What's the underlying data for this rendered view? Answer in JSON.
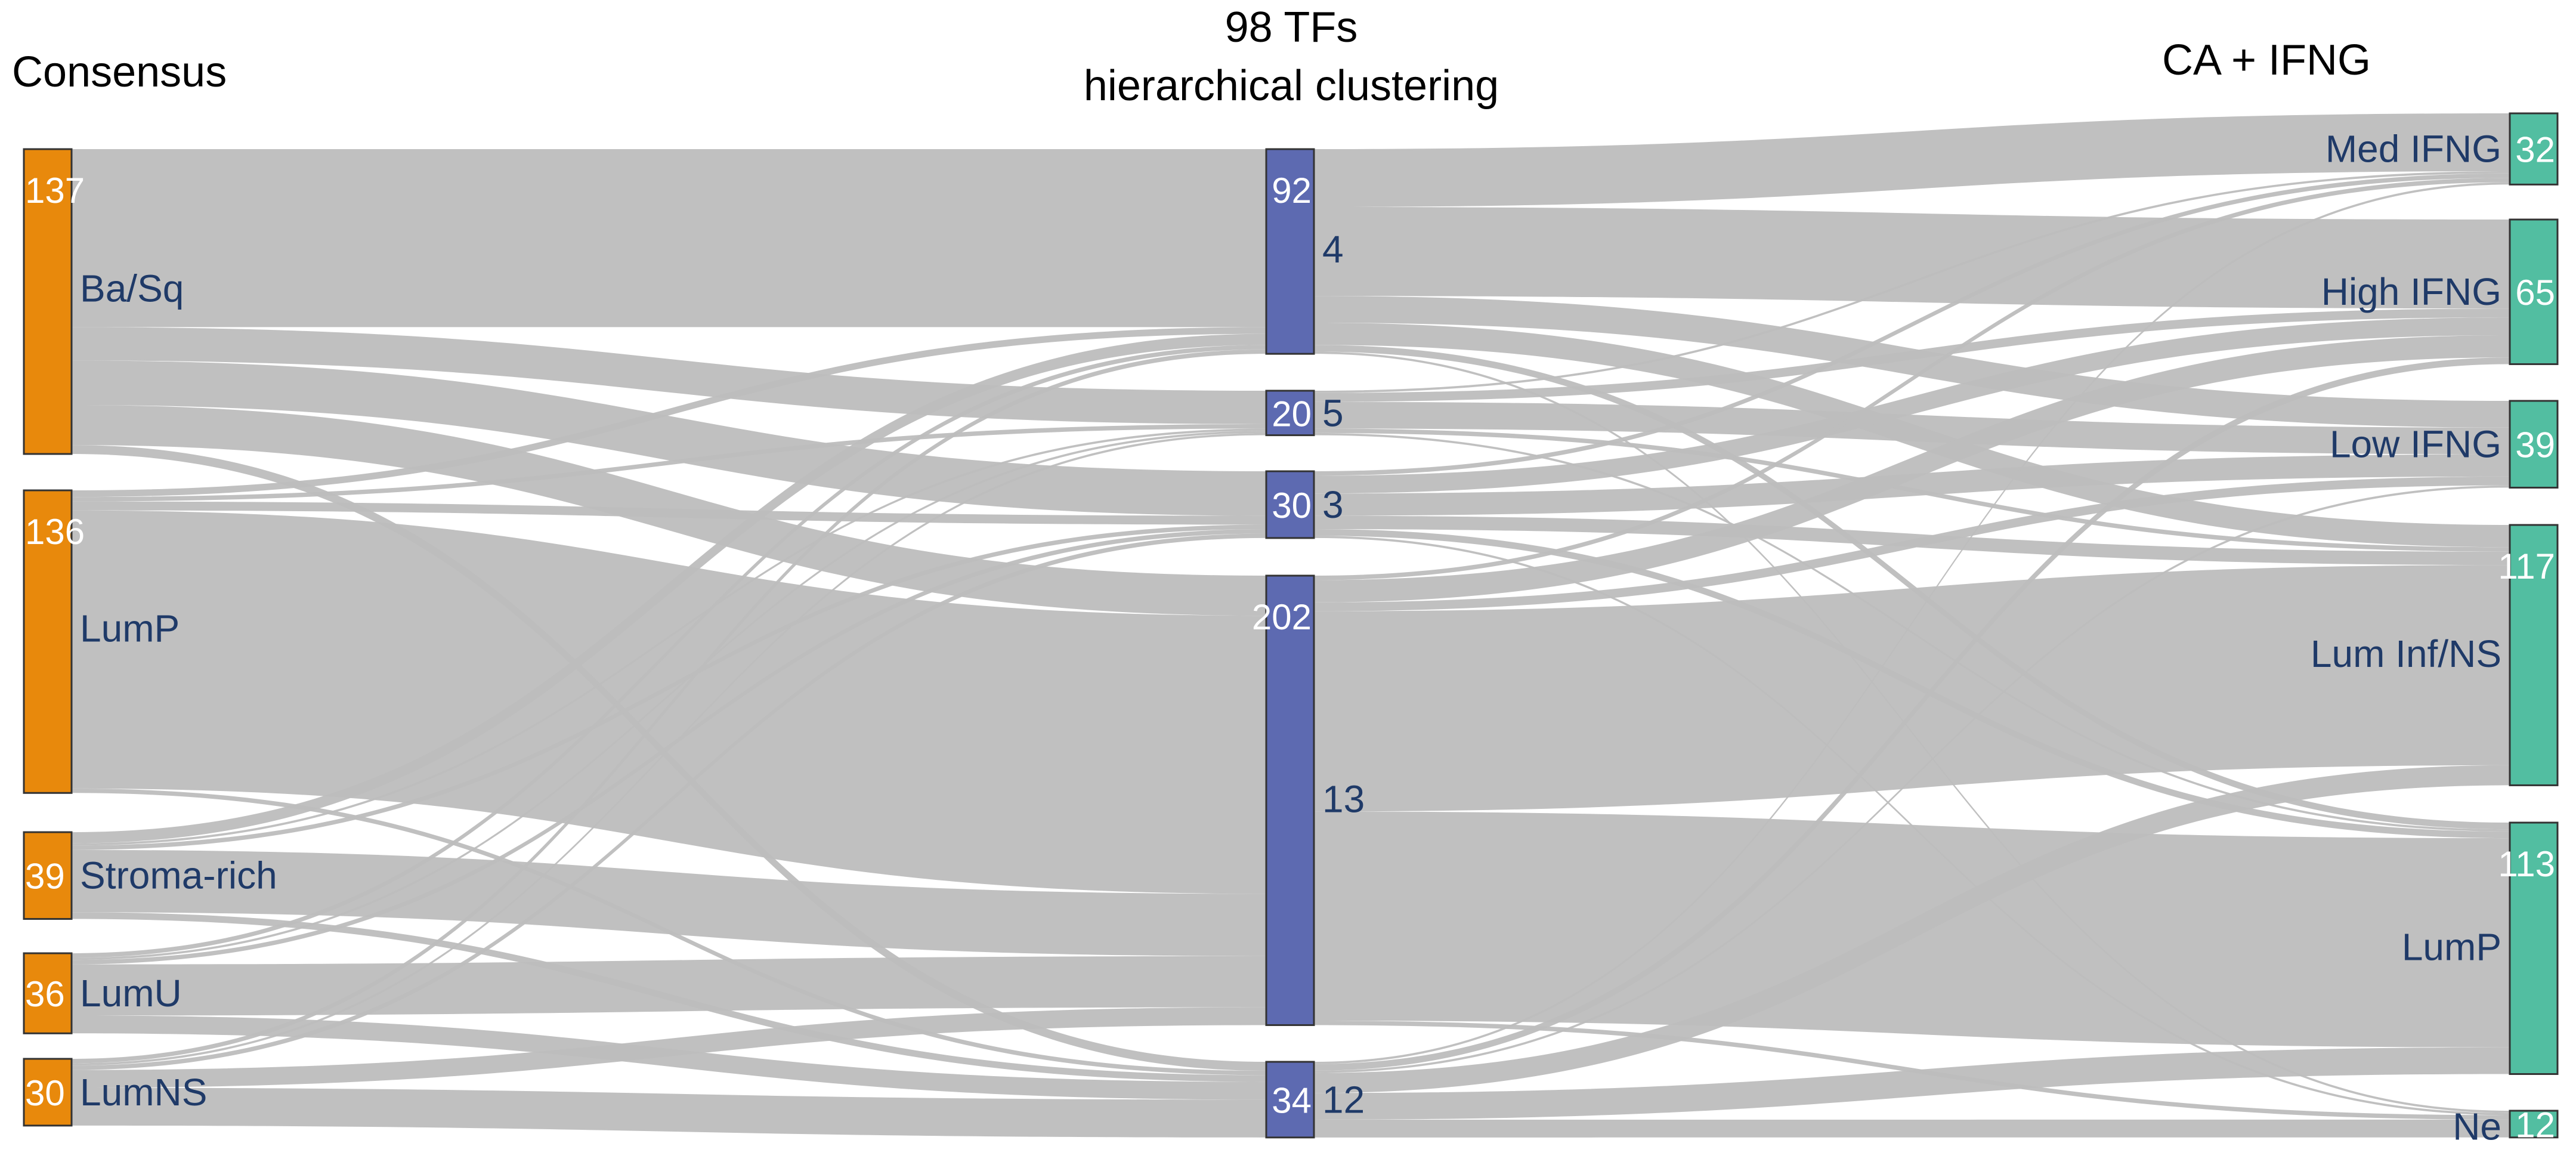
{
  "chart_data": {
    "type": "sankey",
    "columns": [
      {
        "id": "consensus",
        "title_lines": [
          "Consensus"
        ]
      },
      {
        "id": "tfs",
        "title_lines": [
          "98 TFs",
          "hierarchical clustering"
        ]
      },
      {
        "id": "caifng",
        "title_lines": [
          "CA + IFNG"
        ]
      }
    ],
    "colors": {
      "consensus": "#e8890c",
      "tfs": "#5d6ab1",
      "caifng": "#52bea1",
      "link": "#bdbdbd"
    },
    "nodes": [
      {
        "id": "basq",
        "column": "consensus",
        "label": "Ba/Sq",
        "count": "137",
        "value": 137
      },
      {
        "id": "lump_c",
        "column": "consensus",
        "label": "LumP",
        "count": "136",
        "value": 136
      },
      {
        "id": "stroma",
        "column": "consensus",
        "label": "Stroma-rich",
        "count": "39",
        "value": 39
      },
      {
        "id": "lumu",
        "column": "consensus",
        "label": "LumU",
        "count": "36",
        "value": 36
      },
      {
        "id": "lumns",
        "column": "consensus",
        "label": "LumNS",
        "count": "30",
        "value": 30
      },
      {
        "id": "c4",
        "column": "tfs",
        "label": "4",
        "count": "92",
        "value": 92
      },
      {
        "id": "c5",
        "column": "tfs",
        "label": "5",
        "count": "20",
        "value": 20
      },
      {
        "id": "c3",
        "column": "tfs",
        "label": "3",
        "count": "30",
        "value": 30
      },
      {
        "id": "c13",
        "column": "tfs",
        "label": "13",
        "count": "202",
        "value": 202
      },
      {
        "id": "c12",
        "column": "tfs",
        "label": "12",
        "count": "34",
        "value": 34
      },
      {
        "id": "medifng",
        "column": "caifng",
        "label": "Med IFNG",
        "count": "32",
        "value": 32
      },
      {
        "id": "highifng",
        "column": "caifng",
        "label": "High IFNG",
        "count": "65",
        "value": 65
      },
      {
        "id": "lowifng",
        "column": "caifng",
        "label": "Low IFNG",
        "count": "39",
        "value": 39
      },
      {
        "id": "luminf",
        "column": "caifng",
        "label": "Lum Inf/NS",
        "count": "117",
        "value": 117
      },
      {
        "id": "lump_r",
        "column": "caifng",
        "label": "LumP",
        "count": "113",
        "value": 113
      },
      {
        "id": "ne",
        "column": "caifng",
        "label": "Ne",
        "count": "12",
        "value": 12
      }
    ],
    "links": [
      {
        "source": "basq",
        "target": "c4",
        "value": 80
      },
      {
        "source": "basq",
        "target": "c5",
        "value": 15
      },
      {
        "source": "basq",
        "target": "c3",
        "value": 20
      },
      {
        "source": "basq",
        "target": "c13",
        "value": 18
      },
      {
        "source": "basq",
        "target": "c12",
        "value": 4
      },
      {
        "source": "lump_c",
        "target": "c4",
        "value": 3
      },
      {
        "source": "lump_c",
        "target": "c5",
        "value": 2
      },
      {
        "source": "lump_c",
        "target": "c3",
        "value": 4
      },
      {
        "source": "lump_c",
        "target": "c13",
        "value": 125
      },
      {
        "source": "lump_c",
        "target": "c12",
        "value": 2
      },
      {
        "source": "stroma",
        "target": "c4",
        "value": 5
      },
      {
        "source": "stroma",
        "target": "c5",
        "value": 1
      },
      {
        "source": "stroma",
        "target": "c3",
        "value": 2
      },
      {
        "source": "stroma",
        "target": "c13",
        "value": 28
      },
      {
        "source": "stroma",
        "target": "c12",
        "value": 3
      },
      {
        "source": "lumu",
        "target": "c4",
        "value": 2
      },
      {
        "source": "lumu",
        "target": "c5",
        "value": 1
      },
      {
        "source": "lumu",
        "target": "c3",
        "value": 2
      },
      {
        "source": "lumu",
        "target": "c13",
        "value": 23
      },
      {
        "source": "lumu",
        "target": "c12",
        "value": 8
      },
      {
        "source": "lumns",
        "target": "c4",
        "value": 2
      },
      {
        "source": "lumns",
        "target": "c5",
        "value": 1
      },
      {
        "source": "lumns",
        "target": "c3",
        "value": 2
      },
      {
        "source": "lumns",
        "target": "c13",
        "value": 8
      },
      {
        "source": "lumns",
        "target": "c12",
        "value": 17
      },
      {
        "source": "c4",
        "target": "medifng",
        "value": 26
      },
      {
        "source": "c4",
        "target": "highifng",
        "value": 40
      },
      {
        "source": "c4",
        "target": "lowifng",
        "value": 12
      },
      {
        "source": "c4",
        "target": "luminf",
        "value": 10
      },
      {
        "source": "c4",
        "target": "lump_r",
        "value": 3
      },
      {
        "source": "c4",
        "target": "ne",
        "value": 1
      },
      {
        "source": "c5",
        "target": "medifng",
        "value": 1
      },
      {
        "source": "c5",
        "target": "highifng",
        "value": 4
      },
      {
        "source": "c5",
        "target": "lowifng",
        "value": 12
      },
      {
        "source": "c5",
        "target": "luminf",
        "value": 2
      },
      {
        "source": "c5",
        "target": "lump_r",
        "value": 1
      },
      {
        "source": "c3",
        "target": "medifng",
        "value": 2
      },
      {
        "source": "c3",
        "target": "highifng",
        "value": 8
      },
      {
        "source": "c3",
        "target": "lowifng",
        "value": 10
      },
      {
        "source": "c3",
        "target": "luminf",
        "value": 6
      },
      {
        "source": "c3",
        "target": "lump_r",
        "value": 3
      },
      {
        "source": "c3",
        "target": "ne",
        "value": 1
      },
      {
        "source": "c13",
        "target": "medifng",
        "value": 2
      },
      {
        "source": "c13",
        "target": "highifng",
        "value": 10
      },
      {
        "source": "c13",
        "target": "lowifng",
        "value": 4
      },
      {
        "source": "c13",
        "target": "luminf",
        "value": 90
      },
      {
        "source": "c13",
        "target": "lump_r",
        "value": 94
      },
      {
        "source": "c13",
        "target": "ne",
        "value": 2
      },
      {
        "source": "c12",
        "target": "medifng",
        "value": 1
      },
      {
        "source": "c12",
        "target": "highifng",
        "value": 3
      },
      {
        "source": "c12",
        "target": "lowifng",
        "value": 1
      },
      {
        "source": "c12",
        "target": "luminf",
        "value": 9
      },
      {
        "source": "c12",
        "target": "lump_r",
        "value": 12
      },
      {
        "source": "c12",
        "target": "ne",
        "value": 8
      }
    ]
  }
}
